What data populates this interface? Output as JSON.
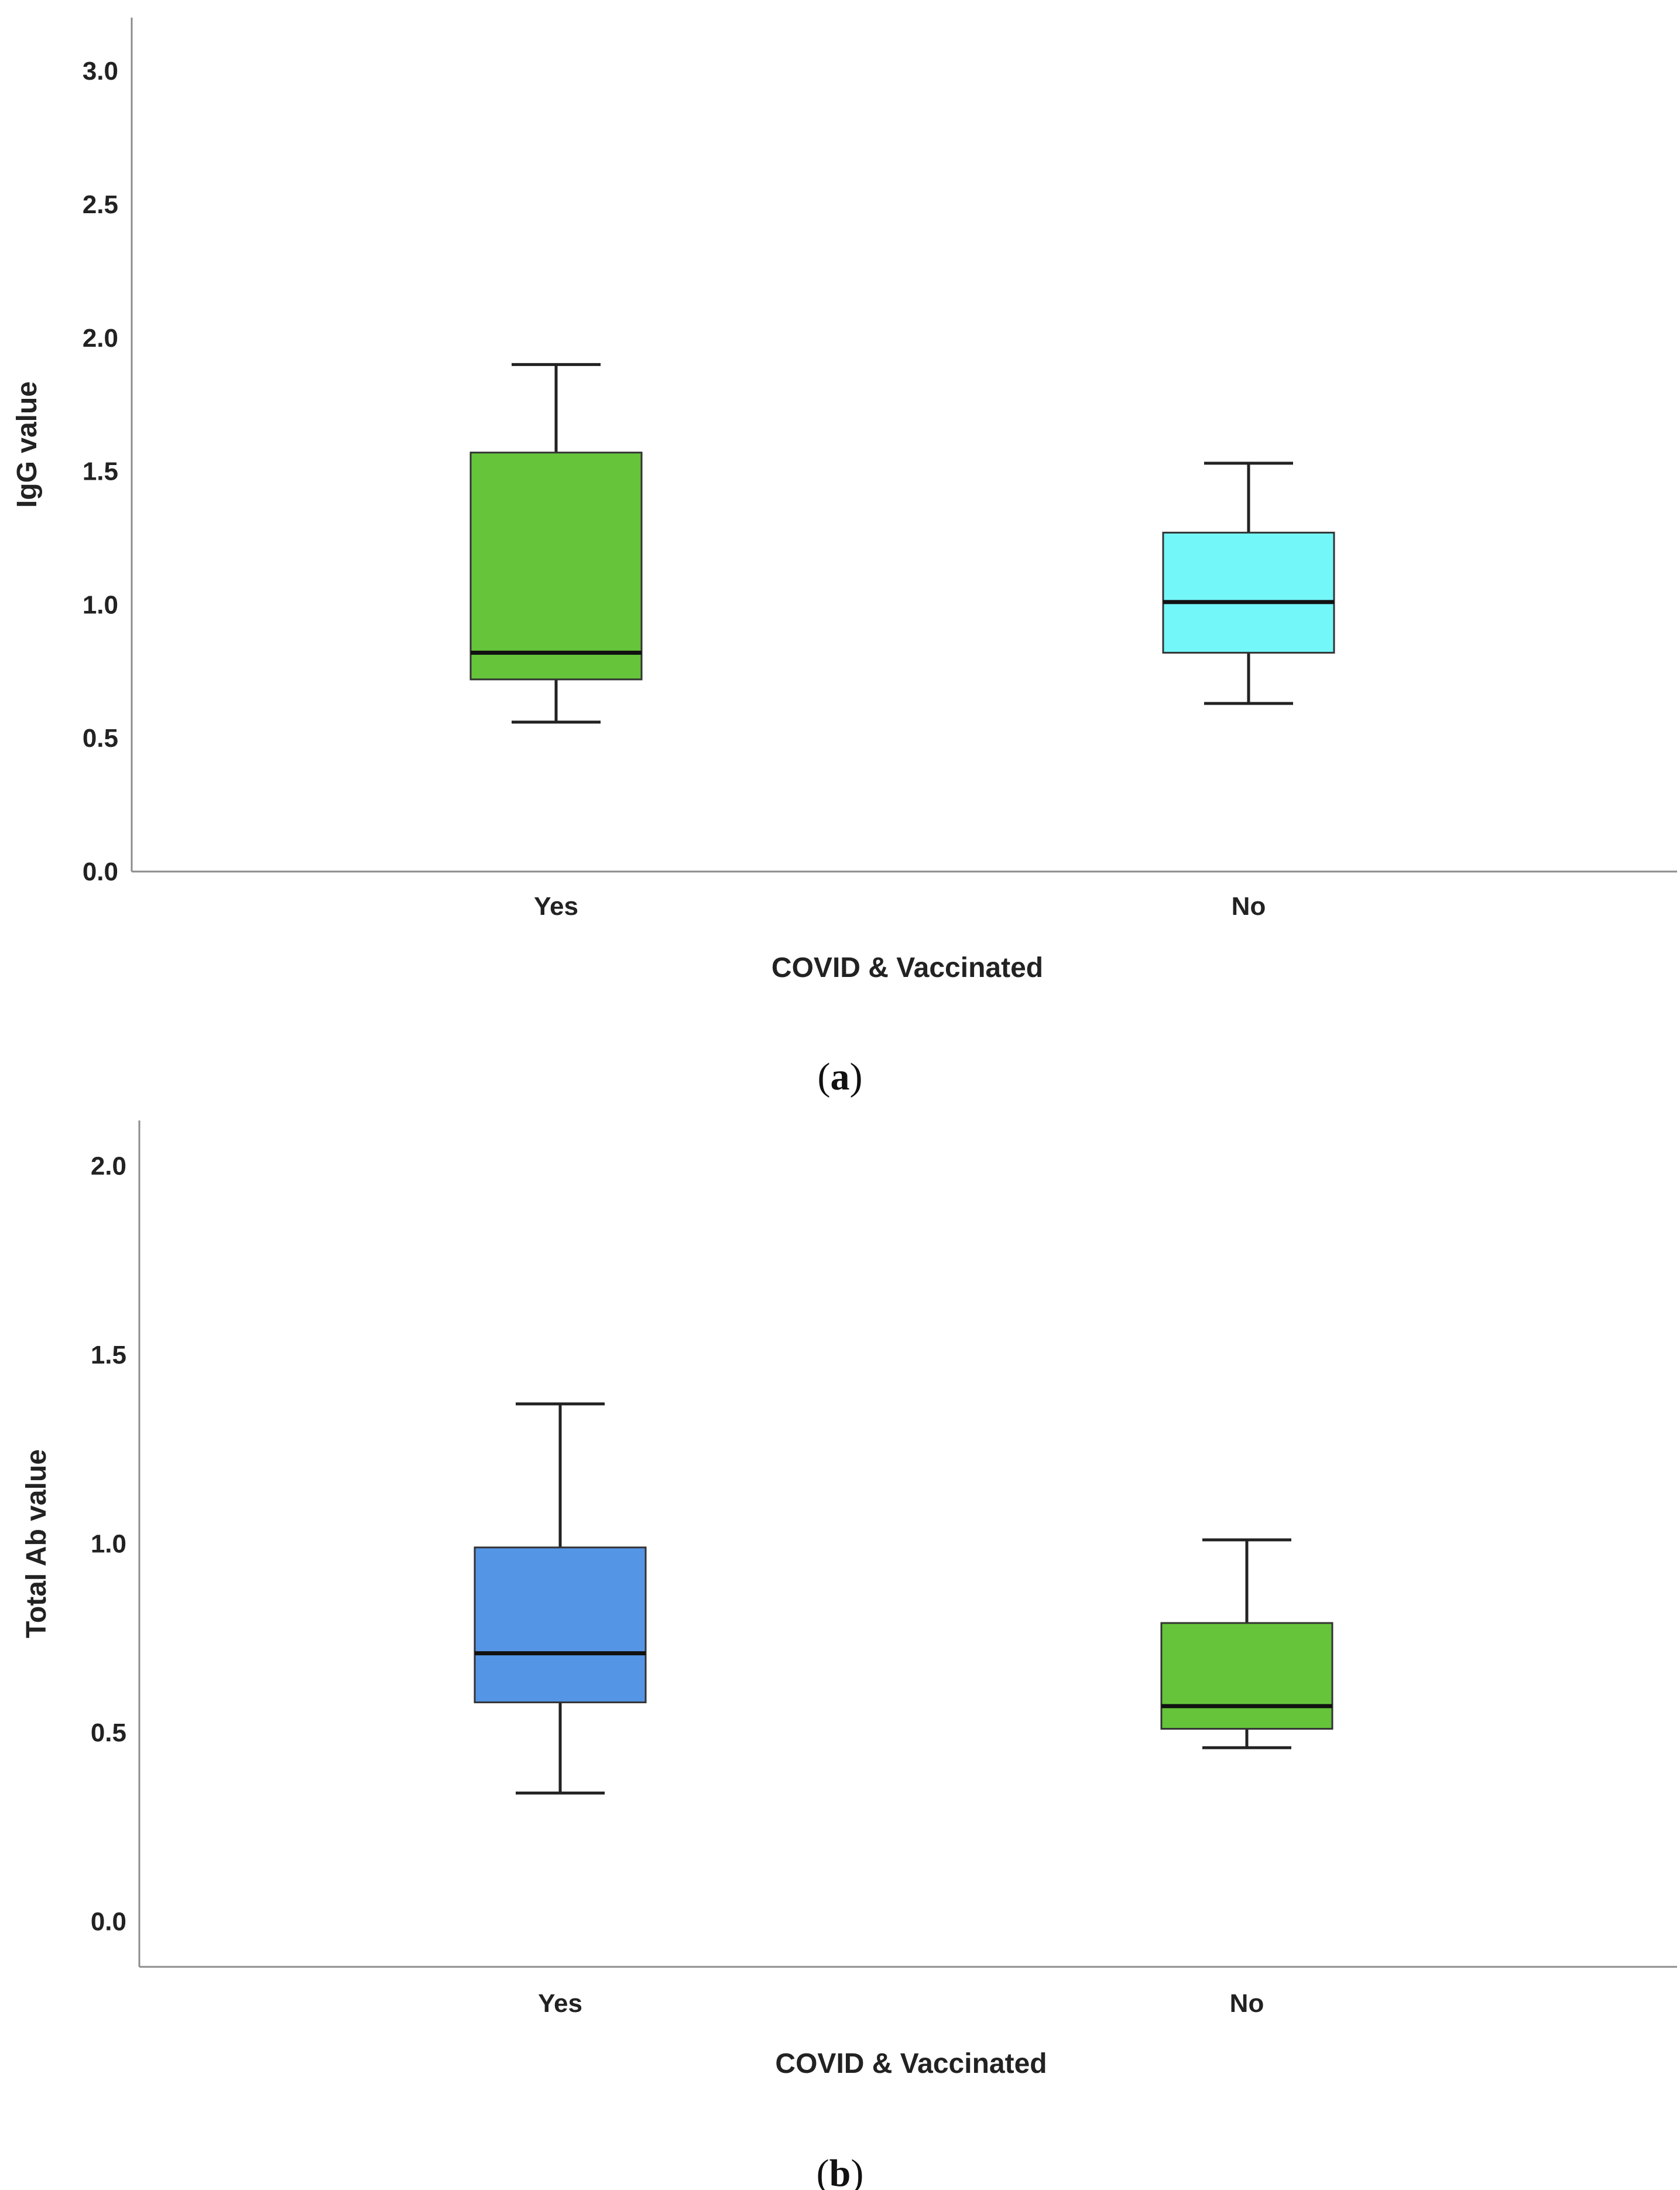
{
  "chart_data": [
    {
      "type": "box",
      "caption_letter": "a",
      "ylabel": "IgG value",
      "xlabel": "COVID & Vaccinated",
      "ylim": [
        0,
        3.2
      ],
      "yticks": [
        0.0,
        0.5,
        1.0,
        1.5,
        2.0,
        2.5,
        3.0
      ],
      "ytick_labels": [
        "0.0",
        "0.5",
        "1.0",
        "1.5",
        "2.0",
        "2.5",
        "3.0"
      ],
      "categories": [
        "Yes",
        "No"
      ],
      "boxes": [
        {
          "category": "Yes",
          "min": 0.56,
          "q1": 0.72,
          "median": 0.82,
          "q3": 1.57,
          "max": 1.9,
          "color": "#66c43a"
        },
        {
          "category": "No",
          "min": 0.63,
          "q1": 0.82,
          "median": 1.01,
          "q3": 1.27,
          "max": 1.53,
          "color": "#74f7f9"
        }
      ]
    },
    {
      "type": "box",
      "caption_letter": "b",
      "ylabel": "Total Ab value",
      "xlabel": "COVID & Vaccinated",
      "ylim": [
        -0.12,
        2.12
      ],
      "yticks": [
        0.0,
        0.5,
        1.0,
        1.5,
        2.0
      ],
      "ytick_labels": [
        "0.0",
        "0.5",
        "1.0",
        "1.5",
        "2.0"
      ],
      "categories": [
        "Yes",
        "No"
      ],
      "boxes": [
        {
          "category": "Yes",
          "min": 0.34,
          "q1": 0.58,
          "median": 0.71,
          "q3": 0.99,
          "max": 1.37,
          "color": "#5595e6"
        },
        {
          "category": "No",
          "min": 0.46,
          "q1": 0.51,
          "median": 0.57,
          "q3": 0.79,
          "max": 1.01,
          "color": "#66c43a"
        }
      ]
    }
  ]
}
